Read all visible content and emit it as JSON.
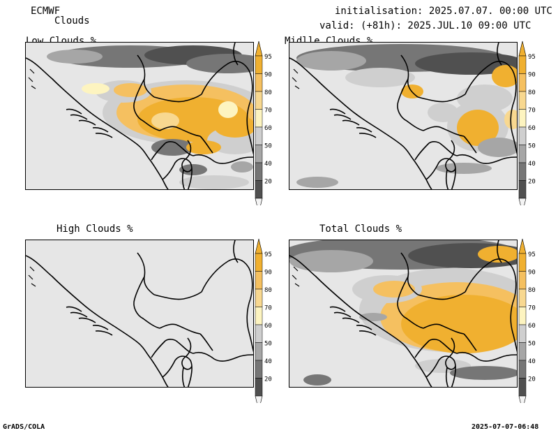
{
  "header": {
    "model": "ECMWF",
    "product": "Clouds",
    "init": "initialisation: 2025.07.07. 00:00 UTC",
    "valid": "valid: (+81h): 2025.JUL.10 09:00 UTC"
  },
  "panels": {
    "low": {
      "title": "Low Clouds %"
    },
    "mid": {
      "title": "Midlle Clouds %"
    },
    "high": {
      "title": "High Clouds %"
    },
    "total": {
      "title": "Total Clouds %"
    }
  },
  "legend": {
    "levels": [
      "95",
      "90",
      "80",
      "70",
      "60",
      "50",
      "40",
      "20"
    ],
    "colors": {
      "c95": "#f0b030",
      "c90": "#f5c060",
      "c80": "#f8d890",
      "c70": "#fdf4c0",
      "c60": "#cfcfcf",
      "c50": "#a6a6a6",
      "c40": "#767676",
      "c20": "#505050",
      "low": "#e6e6e6"
    }
  },
  "footer": {
    "left": "GrADS/COLA",
    "right": "2025-07-07-06:48"
  }
}
